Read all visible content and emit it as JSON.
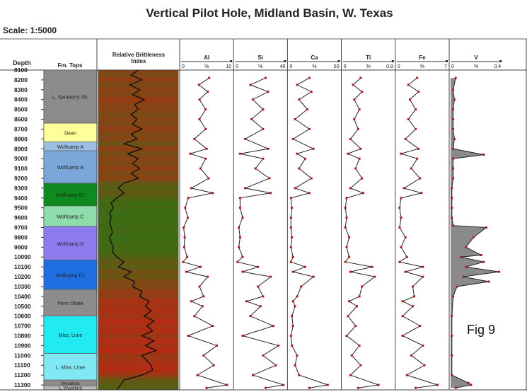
{
  "chart_data": {
    "type": "well-log",
    "title": "Vertical Pilot Hole, Midland Basin, W. Texas",
    "scale_label": "Scale: 1:5000",
    "figure_label": "Fig 9",
    "depth_header": "Depth",
    "fm_header": "Fm. Tops",
    "brittleness_header": [
      "Relative Brittleness",
      "Index"
    ],
    "depth_range": [
      8100,
      11350
    ],
    "depth_ticks": [
      8100,
      8200,
      8300,
      8400,
      8500,
      8600,
      8700,
      8800,
      8900,
      9000,
      9100,
      9200,
      9300,
      9400,
      9500,
      9600,
      9700,
      9800,
      9900,
      10000,
      10100,
      10200,
      10300,
      10400,
      10500,
      10600,
      10700,
      10800,
      10900,
      11000,
      11100,
      11200,
      11300
    ],
    "formations": [
      {
        "name": "L. Spraberry Sh.",
        "top": 8100,
        "base": 8640,
        "color": "#8c8c8c"
      },
      {
        "name": "Dean",
        "top": 8640,
        "base": 8830,
        "color": "#ffff99"
      },
      {
        "name": "Wolfcamp A",
        "top": 8830,
        "base": 8920,
        "color": "#9bbfe3"
      },
      {
        "name": "Wolfcamp B",
        "top": 8920,
        "base": 9250,
        "color": "#7aa7d8"
      },
      {
        "name": "Wolfcamp B1",
        "top": 9250,
        "base": 9480,
        "color": "#0e8a1e"
      },
      {
        "name": "Wolfcamp C",
        "top": 9480,
        "base": 9690,
        "color": "#8fdcab"
      },
      {
        "name": "Wolfcamp D",
        "top": 9690,
        "base": 10030,
        "color": "#8c7cf0"
      },
      {
        "name": "Wolfcamp D1",
        "top": 10030,
        "base": 10330,
        "color": "#1f6fe0"
      },
      {
        "name": "Penn Shale",
        "top": 10330,
        "base": 10600,
        "color": "#8c8c8c"
      },
      {
        "name": "Miss. Lime",
        "top": 10600,
        "base": 10980,
        "color": "#22eaf2"
      },
      {
        "name": "L. Miss. Lime",
        "top": 10980,
        "base": 11250,
        "color": "#7fe8f2"
      },
      {
        "name": "Woodford",
        "top": 11250,
        "base": 11310,
        "color": "#8c8c8c"
      },
      {
        "name": "L. Woodford",
        "top": 11310,
        "base": 11350,
        "color": "#b8b8b8"
      }
    ],
    "tracks": [
      {
        "name": "Al",
        "unit": "%",
        "min": "0",
        "max": "10",
        "max_value": 10,
        "depth": [
          8180,
          8250,
          8320,
          8400,
          8500,
          8600,
          8700,
          8800,
          8900,
          8950,
          9000,
          9100,
          9200,
          9300,
          9350,
          9400,
          9500,
          9600,
          9700,
          9800,
          9900,
          10000,
          10050,
          10100,
          10150,
          10200,
          10300,
          10400,
          10450,
          10500,
          10600,
          10700,
          10800,
          10900,
          11000,
          11100,
          11200,
          11300,
          11330
        ],
        "values": [
          5.5,
          3.5,
          5.2,
          3.6,
          4.8,
          3.6,
          4.8,
          2.6,
          5.0,
          1.8,
          4.8,
          3.8,
          5.4,
          2.0,
          6.2,
          1.4,
          0.8,
          1.3,
          0.5,
          0.7,
          0.6,
          1.2,
          0.4,
          3.8,
          1.0,
          5.2,
          3.6,
          4.4,
          2.0,
          4.2,
          2.6,
          6.2,
          1.4,
          7.0,
          4.4,
          6.4,
          3.2,
          9.0,
          5.0
        ]
      },
      {
        "name": "Si",
        "unit": "%",
        "min": "0",
        "max": "40",
        "max_value": 40,
        "depth": [
          8180,
          8250,
          8320,
          8400,
          8500,
          8600,
          8700,
          8800,
          8900,
          8950,
          9000,
          9100,
          9200,
          9300,
          9350,
          9400,
          9500,
          9600,
          9700,
          9800,
          9900,
          10000,
          10050,
          10100,
          10150,
          10200,
          10300,
          10400,
          10450,
          10500,
          10600,
          10700,
          10800,
          10900,
          11000,
          11100,
          11200,
          11300,
          11330
        ],
        "values": [
          24,
          12,
          26,
          14,
          22,
          13,
          22,
          8,
          26,
          4,
          22,
          16,
          27,
          8,
          28,
          4,
          4,
          6,
          3,
          4,
          3,
          6,
          2,
          18,
          6,
          28,
          18,
          22,
          9,
          20,
          12,
          30,
          6,
          34,
          22,
          32,
          14,
          38,
          24
        ]
      },
      {
        "name": "Ca",
        "unit": "%",
        "min": "0",
        "max": "50",
        "max_value": 50,
        "depth": [
          8180,
          8250,
          8320,
          8400,
          8500,
          8600,
          8700,
          8800,
          8900,
          8950,
          9000,
          9100,
          9200,
          9300,
          9350,
          9400,
          9500,
          9600,
          9700,
          9800,
          9900,
          10000,
          10050,
          10100,
          10150,
          10200,
          10300,
          10400,
          10450,
          10500,
          10600,
          10700,
          10800,
          10900,
          11000,
          11100,
          11200,
          11300,
          11330
        ],
        "values": [
          20,
          8,
          22,
          10,
          18,
          6,
          20,
          4,
          24,
          8,
          16,
          10,
          22,
          6,
          20,
          2,
          3,
          2,
          2,
          3,
          2,
          4,
          2,
          16,
          4,
          24,
          12,
          8,
          4,
          6,
          3,
          4,
          2,
          3,
          8,
          6,
          10,
          38,
          20
        ]
      },
      {
        "name": "Ti",
        "unit": "%",
        "min": "0",
        "max": "0.8",
        "max_value": 0.8,
        "depth": [
          8180,
          8250,
          8320,
          8400,
          8500,
          8600,
          8700,
          8800,
          8900,
          8950,
          9000,
          9100,
          9200,
          9300,
          9350,
          9400,
          9500,
          9600,
          9700,
          9800,
          9900,
          10000,
          10050,
          10100,
          10150,
          10200,
          10300,
          10400,
          10450,
          10500,
          10600,
          10700,
          10800,
          10900,
          11000,
          11100,
          11200,
          11300,
          11330
        ],
        "values": [
          0.28,
          0.16,
          0.3,
          0.18,
          0.26,
          0.18,
          0.24,
          0.12,
          0.28,
          0.08,
          0.26,
          0.2,
          0.3,
          0.12,
          0.32,
          0.06,
          0.04,
          0.06,
          0.04,
          0.1,
          0.06,
          0.1,
          0.04,
          0.46,
          0.12,
          0.5,
          0.3,
          0.26,
          0.1,
          0.22,
          0.08,
          0.2,
          0.06,
          0.26,
          0.14,
          0.28,
          0.12,
          0.56,
          0.24
        ]
      },
      {
        "name": "Fe",
        "unit": "%",
        "min": "0",
        "max": "7",
        "max_value": 7,
        "depth": [
          8180,
          8250,
          8320,
          8400,
          8500,
          8600,
          8700,
          8800,
          8900,
          8950,
          9000,
          9100,
          9200,
          9300,
          9350,
          9400,
          9500,
          9600,
          9700,
          9800,
          9900,
          10000,
          10050,
          10100,
          10150,
          10200,
          10300,
          10400,
          10450,
          10500,
          10600,
          10700,
          10800,
          10900,
          11000,
          11100,
          11200,
          11300,
          11330
        ],
        "values": [
          2.8,
          1.6,
          3.0,
          1.8,
          2.6,
          1.6,
          2.6,
          1.2,
          3.0,
          0.6,
          2.8,
          2.0,
          3.2,
          1.0,
          3.4,
          0.6,
          0.4,
          0.6,
          0.4,
          1.2,
          0.6,
          1.4,
          0.4,
          3.6,
          1.2,
          3.6,
          2.2,
          2.4,
          0.8,
          2.2,
          0.8,
          3.2,
          0.8,
          3.6,
          2.0,
          3.8,
          1.4,
          5.6,
          2.6
        ]
      },
      {
        "name": "V",
        "unit": "%",
        "min": "0",
        "max": "0.4",
        "max_value": 0.4,
        "filled": true,
        "depth": [
          8180,
          8300,
          8400,
          8500,
          8600,
          8700,
          8800,
          8900,
          8960,
          9000,
          9100,
          9200,
          9300,
          9400,
          9500,
          9600,
          9680,
          9700,
          9800,
          9900,
          9980,
          10000,
          10050,
          10100,
          10150,
          10200,
          10250,
          10300,
          10400,
          10600,
          10800,
          11000,
          11200,
          11280,
          11300,
          11330
        ],
        "values": [
          0.04,
          0.02,
          0.03,
          0.02,
          0.02,
          0.02,
          0.03,
          0.02,
          0.26,
          0.02,
          0.02,
          0.02,
          0.01,
          0.01,
          0.01,
          0.01,
          0.02,
          0.28,
          0.18,
          0.12,
          0.24,
          0.08,
          0.26,
          0.12,
          0.38,
          0.1,
          0.3,
          0.05,
          0.02,
          0.01,
          0.01,
          0.01,
          0.01,
          0.14,
          0.16,
          0.04
        ]
      }
    ],
    "brittleness": {
      "depth": [
        8100,
        8150,
        8200,
        8250,
        8300,
        8350,
        8400,
        8450,
        8500,
        8550,
        8600,
        8650,
        8700,
        8750,
        8800,
        8850,
        8900,
        8950,
        9000,
        9050,
        9100,
        9150,
        9200,
        9250,
        9300,
        9350,
        9400,
        9450,
        9500,
        9550,
        9600,
        9650,
        9700,
        9750,
        9800,
        9850,
        9900,
        9950,
        10000,
        10050,
        10100,
        10150,
        10200,
        10250,
        10300,
        10350,
        10400,
        10450,
        10500,
        10550,
        10600,
        10650,
        10700,
        10750,
        10800,
        10850,
        10900,
        10950,
        11000,
        11050,
        11100,
        11150,
        11200,
        11250,
        11300,
        11350
      ],
      "values": [
        0.5,
        0.4,
        0.55,
        0.38,
        0.52,
        0.42,
        0.58,
        0.45,
        0.5,
        0.4,
        0.48,
        0.42,
        0.55,
        0.4,
        0.48,
        0.3,
        0.55,
        0.35,
        0.5,
        0.42,
        0.52,
        0.4,
        0.5,
        0.3,
        0.22,
        0.3,
        0.2,
        0.12,
        0.15,
        0.1,
        0.12,
        0.1,
        0.12,
        0.14,
        0.1,
        0.12,
        0.15,
        0.14,
        0.2,
        0.3,
        0.22,
        0.4,
        0.3,
        0.45,
        0.42,
        0.55,
        0.52,
        0.65,
        0.6,
        0.68,
        0.58,
        0.72,
        0.62,
        0.7,
        0.55,
        0.72,
        0.6,
        0.75,
        0.55,
        0.62,
        0.68,
        0.7,
        0.55,
        0.3,
        0.25,
        0.2
      ]
    }
  }
}
